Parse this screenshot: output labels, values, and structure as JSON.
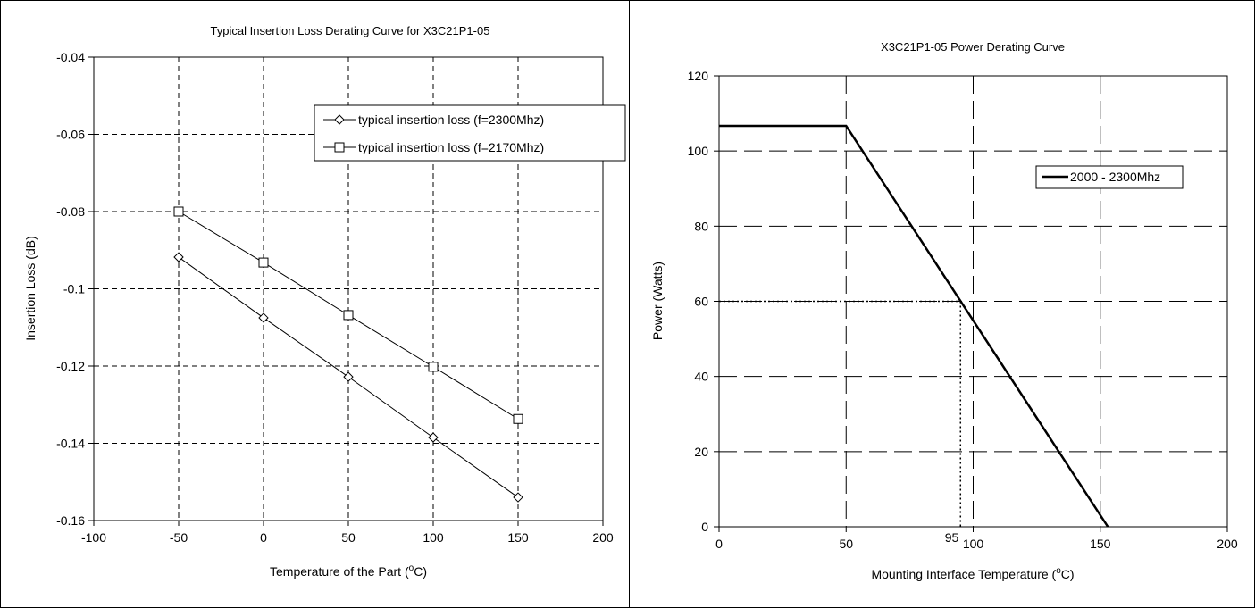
{
  "chart_data": [
    {
      "type": "line",
      "title": "Typical Insertion Loss Derating Curve for X3C21P1-05",
      "xlabel": "Temperature of the Part (°C)",
      "xlabel_main": "Temperature of the Part (",
      "xlabel_sup": "o",
      "xlabel_tail": "C)",
      "ylabel": "Insertion Loss (dB)",
      "xlim": [
        -100,
        200
      ],
      "ylim": [
        -0.16,
        -0.04
      ],
      "xticks": [
        "-100",
        "-50",
        "0",
        "50",
        "100",
        "150",
        "200"
      ],
      "yticks": [
        "-0.04",
        "-0.06",
        "-0.08",
        "-0.1",
        "-0.12",
        "-0.14",
        "-0.16"
      ],
      "x": [
        -50,
        0,
        50,
        100,
        150
      ],
      "series": [
        {
          "name": "typical insertion loss (f=2300Mhz)",
          "marker": "diamond",
          "values": [
            -0.0918,
            -0.1075,
            -0.1228,
            -0.1385,
            -0.154
          ]
        },
        {
          "name": "typical insertion loss (f=2170Mhz)",
          "marker": "square",
          "values": [
            -0.08,
            -0.0932,
            -0.1068,
            -0.1202,
            -0.1337
          ]
        }
      ],
      "grid": true,
      "legend_position": "top-right"
    },
    {
      "type": "line",
      "title": "X3C21P1-05 Power Derating Curve",
      "xlabel": "Mounting Interface Temperature (°C)",
      "xlabel_main": "Mounting Interface Temperature (",
      "xlabel_sup": "o",
      "xlabel_tail": "C)",
      "ylabel": "Power (Watts)",
      "xlim": [
        0,
        200
      ],
      "ylim": [
        0,
        120
      ],
      "xticks": [
        "0",
        "50",
        "100",
        "150",
        "200"
      ],
      "yticks": [
        "120",
        "100",
        "80",
        "60",
        "40",
        "20",
        "0"
      ],
      "series": [
        {
          "name": "2000 - 2300Mhz",
          "x": [
            0,
            50,
            153
          ],
          "values": [
            106.7,
            106.7,
            0
          ]
        }
      ],
      "reference": {
        "x": 95,
        "y": 60,
        "label": "95"
      },
      "grid": true,
      "legend_position": "right"
    }
  ]
}
